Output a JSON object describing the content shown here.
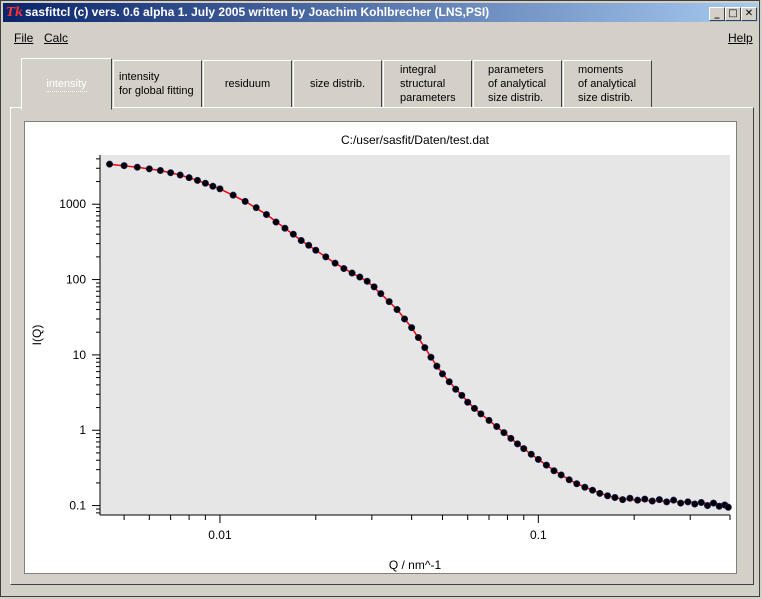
{
  "window": {
    "title": "sasfittcl (c) vers. 0.6 alpha 1. July 2005 written by Joachim Kohlbrecher (LNS,PSI)",
    "icon": "tk-icon"
  },
  "menubar": {
    "file": "File",
    "calc": "Calc",
    "help": "Help"
  },
  "tabs": [
    {
      "label": "intensity"
    },
    {
      "label": "intensity\nfor global fitting"
    },
    {
      "label": "residuum"
    },
    {
      "label": "size distrib."
    },
    {
      "label": "integral\nstructural\nparameters"
    },
    {
      "label": "parameters\nof analytical\nsize distrib."
    },
    {
      "label": "moments\nof analytical\nsize distrib."
    }
  ],
  "chart_data": {
    "type": "scatter",
    "title": "C:/user/sasfit/Daten/test.dat",
    "xlabel": "Q / nm^-1",
    "ylabel": "I(Q)",
    "xscale": "log",
    "yscale": "log",
    "xlim": [
      0.0042,
      0.4
    ],
    "ylim": [
      0.075,
      4500
    ],
    "xtick_labels": [
      "0.01",
      "0.1"
    ],
    "ytick_labels": [
      "0.1",
      "1",
      "10",
      "100",
      "1000"
    ],
    "grid": false,
    "legend": "none",
    "colors": {
      "points": "#000000",
      "fit": "#ff0000",
      "background": "#e6e6e6"
    },
    "series": [
      {
        "kind": "points",
        "x": [
          0.0045,
          0.005,
          0.0055,
          0.006,
          0.0065,
          0.007,
          0.0075,
          0.008,
          0.0085,
          0.009,
          0.0095,
          0.01,
          0.011,
          0.012,
          0.013,
          0.014,
          0.015,
          0.016,
          0.017,
          0.018,
          0.019,
          0.02,
          0.0215,
          0.023,
          0.0245,
          0.026,
          0.0275,
          0.029,
          0.0305,
          0.032,
          0.034,
          0.036,
          0.038,
          0.04,
          0.042,
          0.044,
          0.046,
          0.048,
          0.05,
          0.0525,
          0.055,
          0.0575,
          0.06,
          0.063,
          0.066,
          0.07,
          0.074,
          0.078,
          0.082,
          0.086,
          0.09,
          0.095,
          0.1,
          0.106,
          0.112,
          0.118,
          0.125,
          0.132,
          0.14,
          0.148,
          0.156,
          0.165,
          0.174,
          0.184,
          0.194,
          0.205,
          0.216,
          0.228,
          0.24,
          0.253,
          0.266,
          0.28,
          0.295,
          0.31,
          0.325,
          0.34,
          0.355,
          0.37,
          0.385,
          0.395
        ],
        "y": [
          3400,
          3250,
          3100,
          2950,
          2800,
          2620,
          2440,
          2250,
          2070,
          1900,
          1730,
          1600,
          1320,
          1090,
          900,
          730,
          580,
          480,
          400,
          330,
          285,
          245,
          200,
          165,
          140,
          122,
          108,
          95,
          80,
          65,
          51,
          40,
          30,
          23,
          17,
          12.5,
          9.3,
          7.1,
          5.6,
          4.4,
          3.5,
          2.9,
          2.35,
          1.95,
          1.65,
          1.35,
          1.12,
          0.93,
          0.78,
          0.66,
          0.57,
          0.48,
          0.41,
          0.345,
          0.29,
          0.255,
          0.22,
          0.195,
          0.175,
          0.16,
          0.145,
          0.135,
          0.128,
          0.12,
          0.125,
          0.118,
          0.122,
          0.115,
          0.12,
          0.112,
          0.118,
          0.108,
          0.112,
          0.105,
          0.11,
          0.1,
          0.108,
          0.098,
          0.102,
          0.095
        ]
      },
      {
        "kind": "fit-line",
        "x": [
          0.0045,
          0.0055,
          0.0065,
          0.0075,
          0.0085,
          0.01,
          0.012,
          0.014,
          0.016,
          0.018,
          0.02,
          0.023,
          0.026,
          0.029,
          0.032,
          0.036,
          0.04,
          0.044,
          0.048,
          0.0525,
          0.0575,
          0.063,
          0.07,
          0.078,
          0.086,
          0.095,
          0.106,
          0.118,
          0.132,
          0.148,
          0.165,
          0.184,
          0.205,
          0.228,
          0.253,
          0.28,
          0.31,
          0.34,
          0.37,
          0.395
        ],
        "y": [
          3400,
          3100,
          2800,
          2440,
          2070,
          1600,
          1090,
          730,
          480,
          330,
          245,
          165,
          122,
          95,
          65,
          40,
          23,
          12.5,
          7.1,
          4.4,
          2.9,
          1.95,
          1.35,
          0.93,
          0.66,
          0.48,
          0.345,
          0.255,
          0.195,
          0.16,
          0.135,
          0.122,
          0.118,
          0.116,
          0.114,
          0.112,
          0.11,
          0.108,
          0.106,
          0.105
        ]
      }
    ]
  }
}
